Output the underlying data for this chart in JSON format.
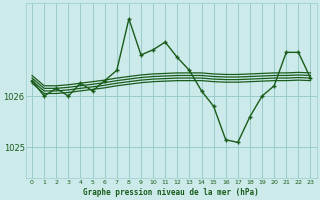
{
  "title": "Graphe pression niveau de la mer (hPa)",
  "bg_color": "#cceaea",
  "plot_bg_color": "#cceaea",
  "grid_color": "#99cccc",
  "line_color": "#1a5c1a",
  "x_ticks": [
    0,
    1,
    2,
    3,
    4,
    5,
    6,
    7,
    8,
    9,
    10,
    11,
    12,
    13,
    14,
    15,
    16,
    17,
    18,
    19,
    20,
    21,
    22,
    23
  ],
  "xlim": [
    -0.5,
    23.5
  ],
  "ylim": [
    1024.4,
    1027.8
  ],
  "yticks": [
    1025,
    1026
  ],
  "main_data": [
    1026.3,
    1026.0,
    1026.15,
    1026.0,
    1026.25,
    1026.1,
    1026.3,
    1026.5,
    1027.5,
    1026.8,
    1026.9,
    1027.05,
    1026.75,
    1026.5,
    1026.1,
    1025.8,
    1025.15,
    1025.1,
    1025.6,
    1026.0,
    1026.2,
    1026.85,
    1026.85,
    1026.35
  ],
  "smooth1": [
    1026.25,
    1026.05,
    1026.05,
    1026.07,
    1026.1,
    1026.13,
    1026.16,
    1026.2,
    1026.23,
    1026.26,
    1026.28,
    1026.29,
    1026.3,
    1026.3,
    1026.3,
    1026.28,
    1026.27,
    1026.27,
    1026.28,
    1026.29,
    1026.3,
    1026.3,
    1026.31,
    1026.3
  ],
  "smooth2": [
    1026.3,
    1026.1,
    1026.1,
    1026.12,
    1026.15,
    1026.18,
    1026.21,
    1026.25,
    1026.28,
    1026.31,
    1026.33,
    1026.34,
    1026.35,
    1026.35,
    1026.35,
    1026.33,
    1026.32,
    1026.32,
    1026.33,
    1026.34,
    1026.35,
    1026.35,
    1026.36,
    1026.35
  ],
  "smooth3": [
    1026.35,
    1026.15,
    1026.15,
    1026.17,
    1026.2,
    1026.23,
    1026.26,
    1026.3,
    1026.33,
    1026.36,
    1026.38,
    1026.39,
    1026.4,
    1026.4,
    1026.4,
    1026.38,
    1026.37,
    1026.37,
    1026.38,
    1026.39,
    1026.4,
    1026.4,
    1026.41,
    1026.4
  ],
  "smooth4": [
    1026.4,
    1026.2,
    1026.2,
    1026.22,
    1026.25,
    1026.28,
    1026.31,
    1026.35,
    1026.38,
    1026.41,
    1026.43,
    1026.44,
    1026.45,
    1026.45,
    1026.45,
    1026.43,
    1026.42,
    1026.42,
    1026.43,
    1026.44,
    1026.45,
    1026.45,
    1026.46,
    1026.45
  ]
}
